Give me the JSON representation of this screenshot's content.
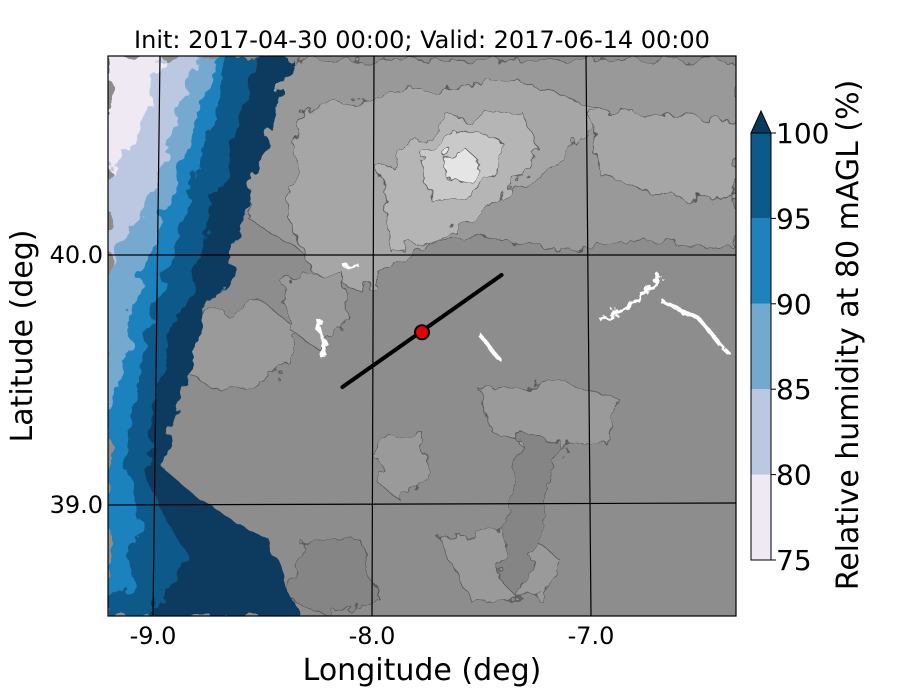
{
  "title": "Init: 2017-04-30 00:00; Valid: 2017-06-14 00:00",
  "xlabel": "Longitude (deg)",
  "ylabel": "Latitude (deg)",
  "x_ticks": [
    "-9.0",
    "-8.0",
    "-7.0"
  ],
  "y_ticks": [
    "40.0",
    "39.0"
  ],
  "colorbar": {
    "label": "Relative humidity at 80 mAGL (%)",
    "ticks": [
      "75",
      "80",
      "85",
      "90",
      "95",
      "100"
    ],
    "levels": [
      75,
      80,
      85,
      90,
      95,
      100
    ],
    "colors": [
      "#efe9f4",
      "#bcc7e1",
      "#74a9cf",
      "#1f82bd",
      "#0b5a8a",
      "#083a5e"
    ],
    "extend": "max"
  },
  "map": {
    "lon_range": [
      -9.25,
      -6.25
    ],
    "lat_range": [
      38.55,
      40.8
    ],
    "terrain_colors": [
      "#8c8c8c",
      "#9a9a9a",
      "#a8a8a8",
      "#b8b8b8",
      "#cccccc",
      "#e6e6e6"
    ],
    "transect": {
      "start": [
        -8.13,
        39.47
      ],
      "end": [
        -7.37,
        39.92
      ]
    },
    "marker": {
      "lon": -7.75,
      "lat": 39.69,
      "color": "#e60000"
    }
  }
}
